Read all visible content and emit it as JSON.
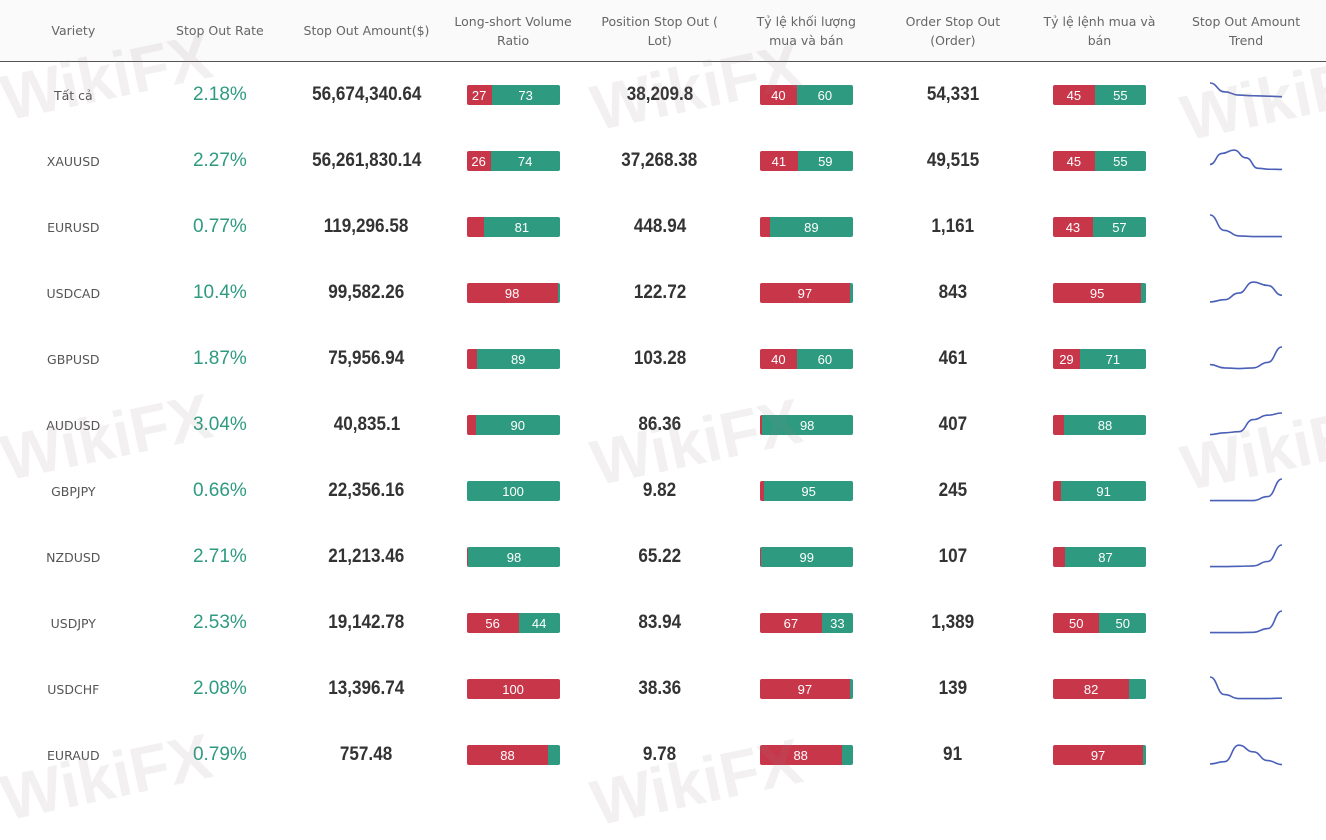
{
  "colors": {
    "short": "#c8364a",
    "long": "#2e9a80",
    "rate": "#2e9a80",
    "trend": "#4a5fb8"
  },
  "watermark": "WikiFX",
  "headers": [
    "Variety",
    "Stop Out Rate",
    "Stop Out Amount($)",
    "Long-short Volume Ratio",
    "Position Stop Out ( Lot)",
    "Tỷ lệ khối lượng mua và bán",
    "Order Stop Out (Order)",
    "Tỷ lệ lệnh mua và bán",
    "Stop Out Amount Trend"
  ],
  "rows": [
    {
      "variety": "Tất cả",
      "rate": "2.18%",
      "amount": "56,674,340.64",
      "ls": 27,
      "lots": "38,209.8",
      "vol": 40,
      "orders": "54,331",
      "ord": 45,
      "trend": [
        1,
        0.6,
        0.45,
        0.42,
        0.4,
        0.38
      ]
    },
    {
      "variety": "XAUUSD",
      "rate": "2.27%",
      "amount": "56,261,830.14",
      "ls": 26,
      "lots": "37,268.38",
      "vol": 41,
      "orders": "49,515",
      "ord": 45,
      "trend": [
        0.3,
        0.8,
        0.95,
        0.6,
        0.12,
        0.08,
        0.07
      ]
    },
    {
      "variety": "EURUSD",
      "rate": "0.77%",
      "amount": "119,296.58",
      "ls": 19,
      "lots": "448.94",
      "vol": 11,
      "orders": "1,161",
      "ord": 43,
      "trend": [
        1,
        0.3,
        0.05,
        0.02,
        0.02,
        0.02
      ]
    },
    {
      "variety": "USDCAD",
      "rate": "10.4%",
      "amount": "99,582.26",
      "ls": 98,
      "lots": "122.72",
      "vol": 97,
      "orders": "843",
      "ord": 95,
      "trend": [
        0.05,
        0.15,
        0.45,
        0.95,
        0.8,
        0.35
      ]
    },
    {
      "variety": "GBPUSD",
      "rate": "1.87%",
      "amount": "75,956.94",
      "ls": 11,
      "lots": "103.28",
      "vol": 40,
      "orders": "461",
      "ord": 29,
      "trend": [
        0.2,
        0.05,
        0.02,
        0.05,
        0.3,
        1
      ]
    },
    {
      "variety": "AUDUSD",
      "rate": "3.04%",
      "amount": "40,835.1",
      "ls": 10,
      "lots": "86.36",
      "vol": 2,
      "orders": "407",
      "ord": 12,
      "trend": [
        0.02,
        0.1,
        0.15,
        0.7,
        0.9,
        1
      ]
    },
    {
      "variety": "GBPJPY",
      "rate": "0.66%",
      "amount": "22,356.16",
      "ls": 0,
      "lots": "9.82",
      "vol": 5,
      "orders": "245",
      "ord": 9,
      "trend": [
        0.02,
        0.02,
        0.02,
        0.02,
        0.2,
        1
      ]
    },
    {
      "variety": "NZDUSD",
      "rate": "2.71%",
      "amount": "21,213.46",
      "ls": 2,
      "lots": "65.22",
      "vol": 1,
      "orders": "107",
      "ord": 13,
      "trend": [
        0.02,
        0.02,
        0.03,
        0.05,
        0.25,
        1
      ]
    },
    {
      "variety": "USDJPY",
      "rate": "2.53%",
      "amount": "19,142.78",
      "ls": 56,
      "lots": "83.94",
      "vol": 67,
      "orders": "1,389",
      "ord": 50,
      "trend": [
        0.02,
        0.02,
        0.02,
        0.03,
        0.2,
        1
      ]
    },
    {
      "variety": "USDCHF",
      "rate": "2.08%",
      "amount": "13,396.74",
      "ls": 100,
      "lots": "38.36",
      "vol": 97,
      "orders": "139",
      "ord": 82,
      "trend": [
        1,
        0.2,
        0.02,
        0.02,
        0.02,
        0.04
      ]
    },
    {
      "variety": "EURAUD",
      "rate": "0.79%",
      "amount": "757.48",
      "ls": 88,
      "lots": "9.78",
      "vol": 88,
      "orders": "91",
      "ord": 97,
      "trend": [
        0.05,
        0.15,
        0.9,
        0.6,
        0.2,
        0.02
      ]
    }
  ]
}
